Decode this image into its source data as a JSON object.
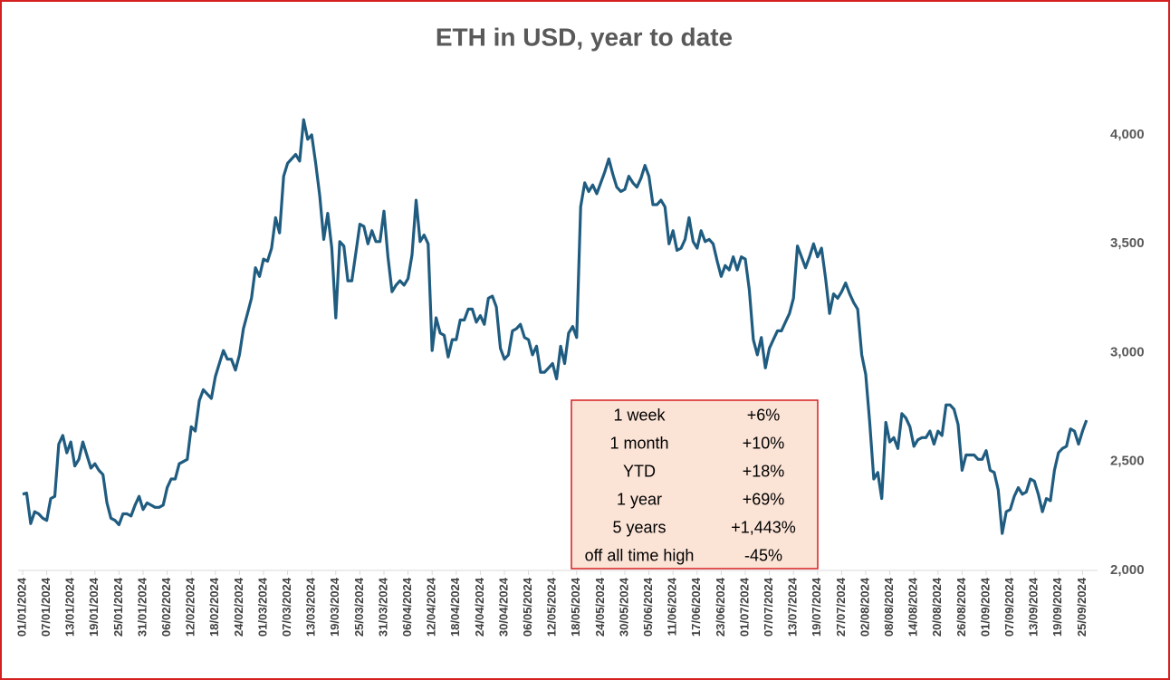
{
  "chart_data": {
    "type": "line",
    "title": "ETH in USD, year to date",
    "categories": [
      "01/01/2024",
      null,
      null,
      null,
      null,
      null,
      "07/01/2024",
      null,
      null,
      null,
      null,
      null,
      "13/01/2024",
      null,
      null,
      null,
      null,
      null,
      "19/01/2024",
      null,
      null,
      null,
      null,
      null,
      "25/01/2024",
      null,
      null,
      null,
      null,
      null,
      "31/01/2024",
      null,
      null,
      null,
      null,
      null,
      "06/02/2024",
      null,
      null,
      null,
      null,
      null,
      "12/02/2024",
      null,
      null,
      null,
      null,
      null,
      "18/02/2024",
      null,
      null,
      null,
      null,
      null,
      "24/02/2024",
      null,
      null,
      null,
      null,
      null,
      "01/03/2024",
      null,
      null,
      null,
      null,
      null,
      "07/03/2024",
      null,
      null,
      null,
      null,
      null,
      "13/03/2024",
      null,
      null,
      null,
      null,
      null,
      "19/03/2024",
      null,
      null,
      null,
      null,
      null,
      "25/03/2024",
      null,
      null,
      null,
      null,
      null,
      "31/03/2024",
      null,
      null,
      null,
      null,
      null,
      "06/04/2024",
      null,
      null,
      null,
      null,
      null,
      "12/04/2024",
      null,
      null,
      null,
      null,
      null,
      "18/04/2024",
      null,
      null,
      null,
      null,
      null,
      "24/04/2024",
      null,
      null,
      null,
      null,
      null,
      "30/04/2024",
      null,
      null,
      null,
      null,
      null,
      "06/05/2024",
      null,
      null,
      null,
      null,
      null,
      "12/05/2024",
      null,
      null,
      null,
      null,
      null,
      "18/05/2024",
      null,
      null,
      null,
      null,
      null,
      "24/05/2024",
      null,
      null,
      null,
      null,
      null,
      "30/05/2024",
      null,
      null,
      null,
      null,
      null,
      "05/06/2024",
      null,
      null,
      null,
      null,
      null,
      "11/06/2024",
      null,
      null,
      null,
      null,
      null,
      "17/06/2024",
      null,
      null,
      null,
      null,
      null,
      "23/06/2024",
      null,
      null,
      null,
      null,
      null,
      "01/07/2024",
      null,
      null,
      null,
      null,
      null,
      "07/07/2024",
      null,
      null,
      null,
      null,
      null,
      "13/07/2024",
      null,
      null,
      null,
      null,
      null,
      "19/07/2024",
      null,
      null,
      null,
      null,
      null,
      "27/07/2024",
      null,
      null,
      null,
      null,
      null,
      "02/08/2024",
      null,
      null,
      null,
      null,
      null,
      "08/08/2024",
      null,
      null,
      null,
      null,
      null,
      "14/08/2024",
      null,
      null,
      null,
      null,
      null,
      "20/08/2024",
      null,
      null,
      null,
      null,
      null,
      "26/08/2024",
      null,
      null,
      null,
      null,
      null,
      "01/09/2024",
      null,
      null,
      null,
      null,
      null,
      "07/09/2024",
      null,
      null,
      null,
      null,
      null,
      "13/09/2024",
      null,
      null,
      null,
      null,
      null,
      "19/09/2024",
      null,
      null,
      null,
      null,
      null,
      "25/09/2024",
      null
    ],
    "series": [
      {
        "color": "#1f5c80",
        "values": [
          2350,
          2355,
          2215,
          2270,
          2260,
          2240,
          2230,
          2330,
          2340,
          2580,
          2620,
          2540,
          2590,
          2480,
          2510,
          2590,
          2530,
          2470,
          2490,
          2460,
          2440,
          2310,
          2240,
          2230,
          2210,
          2260,
          2260,
          2250,
          2300,
          2340,
          2280,
          2310,
          2300,
          2290,
          2290,
          2300,
          2380,
          2420,
          2420,
          2490,
          2500,
          2510,
          2660,
          2640,
          2780,
          2830,
          2810,
          2790,
          2890,
          2950,
          3010,
          2970,
          2970,
          2920,
          2990,
          3110,
          3180,
          3250,
          3390,
          3350,
          3430,
          3420,
          3480,
          3620,
          3550,
          3810,
          3870,
          3890,
          3910,
          3880,
          4070,
          3980,
          4000,
          3870,
          3720,
          3520,
          3640,
          3480,
          3160,
          3510,
          3490,
          3330,
          3330,
          3460,
          3590,
          3580,
          3500,
          3560,
          3510,
          3510,
          3650,
          3440,
          3280,
          3310,
          3330,
          3310,
          3340,
          3450,
          3700,
          3510,
          3540,
          3500,
          3010,
          3160,
          3090,
          3080,
          2980,
          3060,
          3060,
          3150,
          3150,
          3200,
          3200,
          3140,
          3170,
          3130,
          3250,
          3260,
          3210,
          3020,
          2970,
          2990,
          3100,
          3110,
          3130,
          3070,
          3060,
          2990,
          3030,
          2910,
          2910,
          2930,
          2950,
          2880,
          3030,
          2950,
          3090,
          3120,
          3070,
          3670,
          3780,
          3740,
          3770,
          3730,
          3780,
          3830,
          3890,
          3820,
          3760,
          3740,
          3750,
          3810,
          3780,
          3760,
          3800,
          3860,
          3810,
          3680,
          3680,
          3700,
          3670,
          3500,
          3560,
          3470,
          3480,
          3520,
          3620,
          3510,
          3480,
          3560,
          3510,
          3520,
          3500,
          3420,
          3350,
          3400,
          3380,
          3440,
          3380,
          3440,
          3430,
          3290,
          3060,
          2990,
          3070,
          2930,
          3020,
          3060,
          3100,
          3100,
          3140,
          3180,
          3250,
          3490,
          3440,
          3390,
          3440,
          3500,
          3440,
          3480,
          3340,
          3180,
          3270,
          3250,
          3280,
          3320,
          3270,
          3230,
          3200,
          2990,
          2900,
          2680,
          2420,
          2450,
          2330,
          2680,
          2590,
          2610,
          2560,
          2720,
          2700,
          2660,
          2570,
          2600,
          2610,
          2610,
          2640,
          2580,
          2640,
          2620,
          2760,
          2760,
          2740,
          2670,
          2460,
          2530,
          2530,
          2530,
          2510,
          2510,
          2550,
          2460,
          2450,
          2370,
          2170,
          2270,
          2280,
          2340,
          2380,
          2350,
          2360,
          2420,
          2410,
          2350,
          2270,
          2330,
          2320,
          2460,
          2540,
          2560,
          2570,
          2650,
          2640,
          2580,
          2640,
          2690
        ]
      }
    ],
    "ylim": [
      2000,
      4200
    ],
    "yticks": [
      {
        "value": 2000,
        "label": "2,000"
      },
      {
        "value": 2500,
        "label": "2,500"
      },
      {
        "value": 3000,
        "label": "3,000"
      },
      {
        "value": 3500,
        "label": "3,500"
      },
      {
        "value": 4000,
        "label": "4,000"
      }
    ]
  },
  "table": {
    "rows": [
      [
        "1 week",
        "+6%"
      ],
      [
        "1 month",
        "+10%"
      ],
      [
        "YTD",
        "+18%"
      ],
      [
        "1 year",
        "+69%"
      ],
      [
        "5 years",
        "+1,443%"
      ],
      [
        "off all time high",
        "-45%"
      ]
    ]
  }
}
